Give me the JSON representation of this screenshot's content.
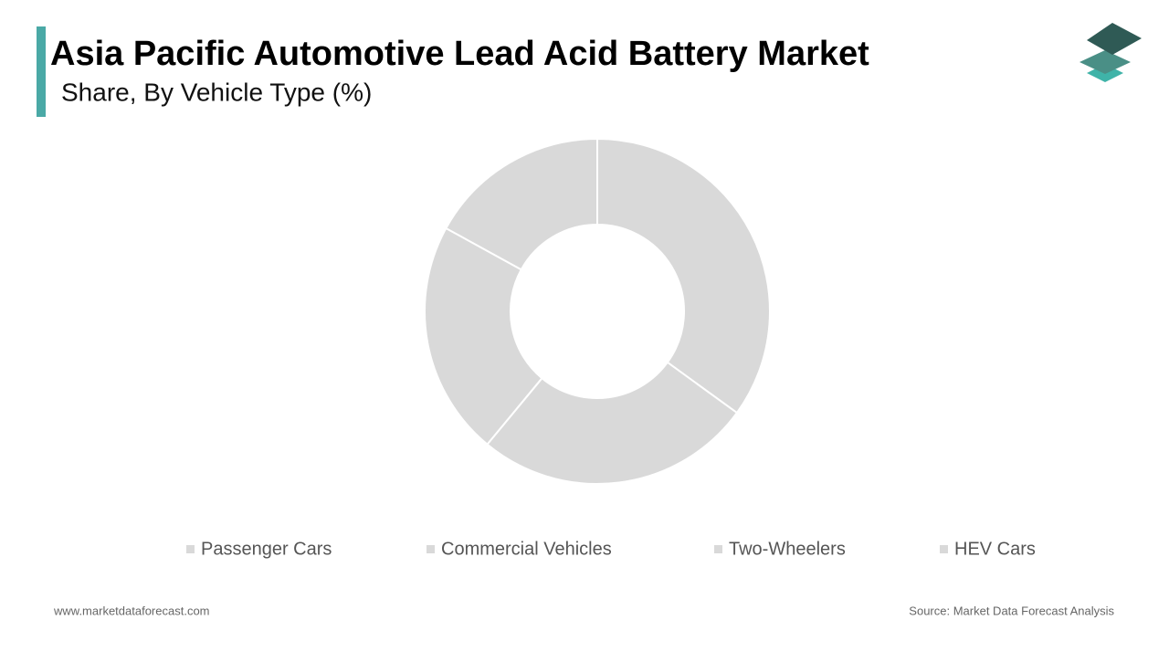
{
  "chart_data": {
    "type": "donut",
    "title": "Asia Pacific Automotive Lead Acid Battery Market",
    "subtitle": "Share, By Vehicle Type (%)",
    "categories": [
      "Passenger Cars",
      "Commercial Vehicles",
      "Two-Wheelers",
      "HEV Cars"
    ],
    "values": [
      35,
      26,
      22,
      17
    ],
    "colors": [
      "#d9d9d9",
      "#d9d9d9",
      "#d9d9d9",
      "#d9d9d9"
    ],
    "legend": "bottom"
  },
  "footer": {
    "website": "www.marketdataforecast.com",
    "source": "Source: Market Data Forecast Analysis"
  }
}
